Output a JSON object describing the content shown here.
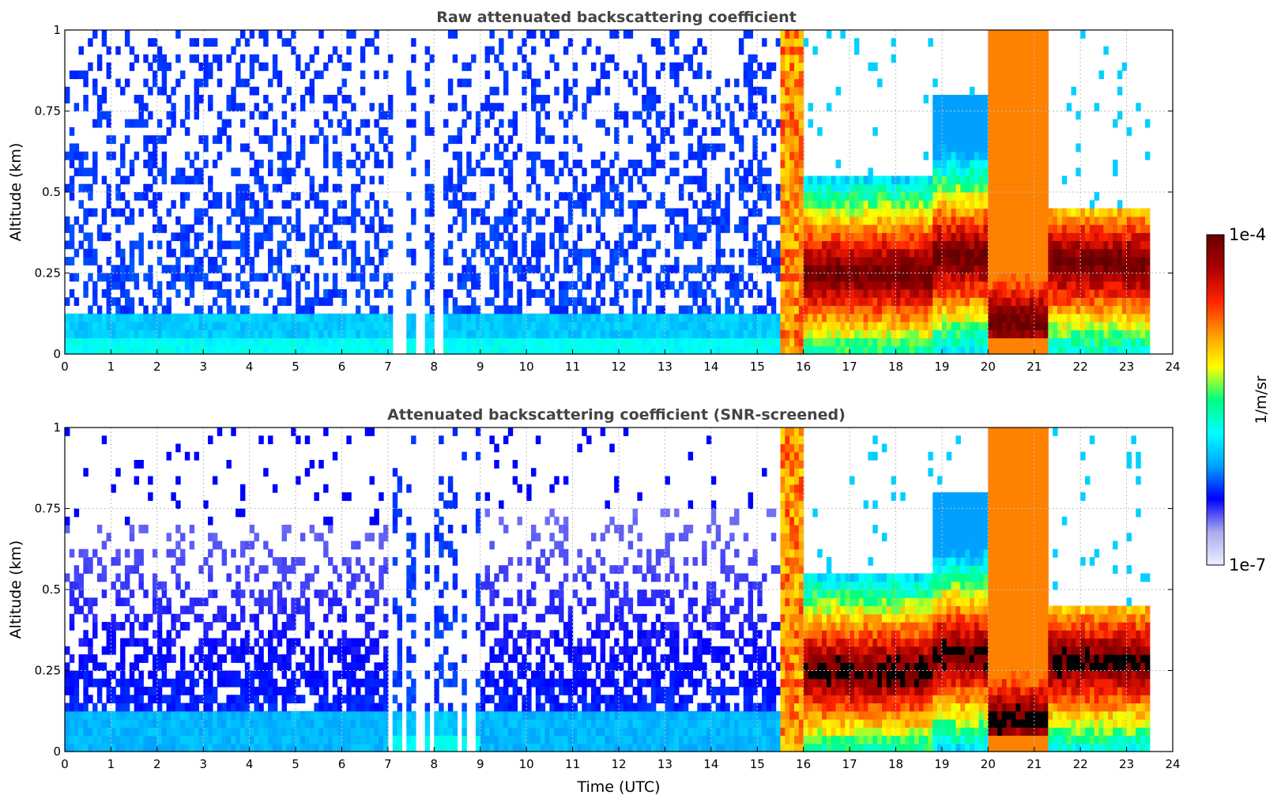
{
  "chart_data": [
    {
      "type": "heatmap",
      "title": "Raw attenuated backscattering coefficient",
      "xlabel": "",
      "ylabel": "Altitude (km)",
      "xlim": [
        0,
        24
      ],
      "ylim": [
        0,
        1
      ],
      "x_ticks": [
        "0",
        "1",
        "2",
        "3",
        "4",
        "5",
        "6",
        "7",
        "8",
        "9",
        "10",
        "11",
        "12",
        "13",
        "14",
        "15",
        "16",
        "17",
        "18",
        "19",
        "20",
        "21",
        "22",
        "23",
        "24"
      ],
      "y_ticks": [
        "0",
        "0.25",
        "0.5",
        "0.75",
        "1"
      ],
      "grid": true,
      "screened": false,
      "data_end_hour": 23.55,
      "segments": [
        {
          "start": 0.0,
          "end": 7.0,
          "regime": "clear-noisy",
          "top_km": 1.0,
          "peak_km": 0.06
        },
        {
          "start": 7.0,
          "end": 9.0,
          "regime": "intermittent-gaps",
          "top_km": 1.0,
          "peak_km": 0.05
        },
        {
          "start": 9.0,
          "end": 15.5,
          "regime": "clear-noisy",
          "top_km": 1.0,
          "peak_km": 0.05
        },
        {
          "start": 15.5,
          "end": 16.0,
          "regime": "fog-onset",
          "top_km": 1.0,
          "peak_km": 0.5
        },
        {
          "start": 16.0,
          "end": 18.8,
          "regime": "fog-layer",
          "top_km": 0.55,
          "peak_km": 0.25
        },
        {
          "start": 18.8,
          "end": 20.0,
          "regime": "fog-thick",
          "top_km": 0.8,
          "peak_km": 0.3
        },
        {
          "start": 20.0,
          "end": 21.3,
          "regime": "fog-dense-deep",
          "top_km": 1.0,
          "peak_km": 0.1
        },
        {
          "start": 21.3,
          "end": 23.55,
          "regime": "fog-layer",
          "top_km": 0.45,
          "peak_km": 0.28
        }
      ]
    },
    {
      "type": "heatmap",
      "title": "Attenuated backscattering coefficient (SNR-screened)",
      "xlabel": "Time (UTC)",
      "ylabel": "Altitude (km)",
      "xlim": [
        0,
        24
      ],
      "ylim": [
        0,
        1
      ],
      "x_ticks": [
        "0",
        "1",
        "2",
        "3",
        "4",
        "5",
        "6",
        "7",
        "8",
        "9",
        "10",
        "11",
        "12",
        "13",
        "14",
        "15",
        "16",
        "17",
        "18",
        "19",
        "20",
        "21",
        "22",
        "23",
        "24"
      ],
      "y_ticks": [
        "0",
        "0.25",
        "0.5",
        "0.75",
        "1"
      ],
      "grid": true,
      "screened": true,
      "data_end_hour": 23.55,
      "segments": [
        {
          "start": 0.0,
          "end": 7.0,
          "regime": "clear-screened",
          "top_km": 0.7,
          "peak_km": 0.06
        },
        {
          "start": 7.0,
          "end": 9.0,
          "regime": "intermittent-gaps",
          "top_km": 0.6,
          "peak_km": 0.05
        },
        {
          "start": 9.0,
          "end": 15.5,
          "regime": "clear-screened",
          "top_km": 0.75,
          "peak_km": 0.05
        },
        {
          "start": 15.5,
          "end": 16.0,
          "regime": "fog-onset",
          "top_km": 1.0,
          "peak_km": 0.5
        },
        {
          "start": 16.0,
          "end": 18.8,
          "regime": "fog-layer",
          "top_km": 0.55,
          "peak_km": 0.25
        },
        {
          "start": 18.8,
          "end": 20.0,
          "regime": "fog-thick",
          "top_km": 0.8,
          "peak_km": 0.3
        },
        {
          "start": 20.0,
          "end": 21.3,
          "regime": "fog-dense-deep",
          "top_km": 1.0,
          "peak_km": 0.1
        },
        {
          "start": 21.3,
          "end": 23.55,
          "regime": "fog-layer",
          "top_km": 0.45,
          "peak_km": 0.28
        }
      ]
    }
  ],
  "colorbar": {
    "label": "1/m/sr",
    "min_label": "1e-7",
    "max_label": "1e-4",
    "colormap": [
      "#eeeeff",
      "#aaaaee",
      "#0000ff",
      "#00a0ff",
      "#00ffff",
      "#00ff80",
      "#ffff00",
      "#ff9900",
      "#ff2200",
      "#aa0000",
      "#660000"
    ]
  }
}
